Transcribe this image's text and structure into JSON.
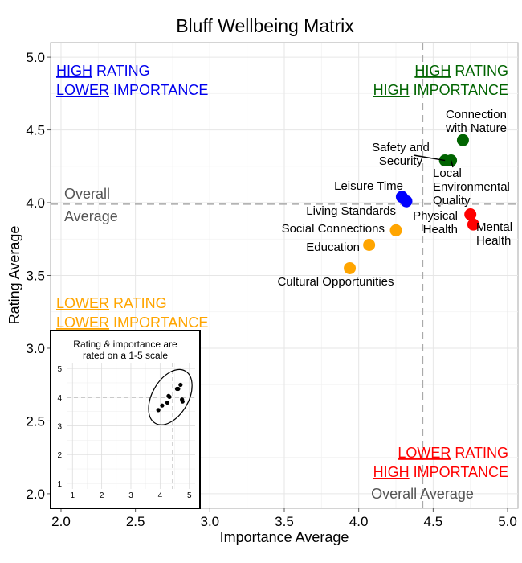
{
  "chart_data": {
    "type": "scatter",
    "title": "Bluff Wellbeing Matrix",
    "xlabel": "Importance Average",
    "ylabel": "Rating Average",
    "xlim": [
      1.93,
      5.07
    ],
    "ylim": [
      1.9,
      5.1
    ],
    "xticks": [
      "2.0",
      "2.5",
      "3.0",
      "3.5",
      "4.0",
      "4.5",
      "5.0"
    ],
    "yticks": [
      "2.0",
      "2.5",
      "3.0",
      "3.5",
      "4.0",
      "4.5",
      "5.0"
    ],
    "grid": true,
    "reference_lines": {
      "overall_importance": 4.43,
      "overall_rating": 3.99
    },
    "reference_labels": {
      "rating": [
        "Overall",
        "Average"
      ],
      "importance": "Overall Average"
    },
    "colors": {
      "high_high": "#006400",
      "high_low": "#0000ee",
      "low_low": "#ffa500",
      "low_high": "#ff0000",
      "points_green": "#006400",
      "points_blue": "#0000ff",
      "points_orange": "#ffa500",
      "points_red": "#ff0000"
    },
    "quadrants": [
      {
        "id": "high-rating-lower-importance",
        "lines": [
          [
            "HIGH",
            " RATING"
          ],
          [
            "LOWER",
            " IMPORTANCE"
          ]
        ],
        "color": "#0000ee",
        "position": "top-left"
      },
      {
        "id": "high-rating-high-importance",
        "lines": [
          [
            "HIGH",
            " RATING"
          ],
          [
            "HIGH",
            " IMPORTANCE"
          ]
        ],
        "color": "#006400",
        "position": "top-right"
      },
      {
        "id": "lower-rating-lower-importance",
        "lines": [
          [
            "LOWER",
            " RATING"
          ],
          [
            "LOWER",
            " IMPORTANCE"
          ]
        ],
        "color": "#ffa500",
        "position": "bottom-left"
      },
      {
        "id": "lower-rating-high-importance",
        "lines": [
          [
            "LOWER",
            " RATING"
          ],
          [
            "HIGH",
            " IMPORTANCE"
          ]
        ],
        "color": "#ff0000",
        "position": "bottom-right"
      }
    ],
    "points": [
      {
        "label": [
          "Connection",
          "with Nature"
        ],
        "x": 4.7,
        "y": 4.43,
        "color": "#006400"
      },
      {
        "label": [
          "Safety and",
          "Security"
        ],
        "x": 4.58,
        "y": 4.29,
        "color": "#006400"
      },
      {
        "label": [
          "Local",
          "Environmental",
          "Quality"
        ],
        "x": 4.62,
        "y": 4.29,
        "color": "#006400"
      },
      {
        "label": [
          "Leisure Time"
        ],
        "x": 4.29,
        "y": 4.04,
        "color": "#0000ff"
      },
      {
        "label": [
          "Living Standards"
        ],
        "x": 4.32,
        "y": 4.01,
        "color": "#0000ff"
      },
      {
        "label": [
          "Physical",
          "Health"
        ],
        "x": 4.75,
        "y": 3.92,
        "color": "#ff0000"
      },
      {
        "label": [
          "Mental",
          "Health"
        ],
        "x": 4.77,
        "y": 3.85,
        "color": "#ff0000"
      },
      {
        "label": [
          "Social Connections"
        ],
        "x": 4.25,
        "y": 3.81,
        "color": "#ffa500"
      },
      {
        "label": [
          "Education"
        ],
        "x": 4.07,
        "y": 3.71,
        "color": "#ffa500"
      },
      {
        "label": [
          "Cultural Opportunities"
        ],
        "x": 3.94,
        "y": 3.55,
        "color": "#ffa500"
      }
    ],
    "inset": {
      "title": [
        "Rating & importance are",
        "rated on a 1-5 scale"
      ],
      "xlim": [
        0.8,
        5.2
      ],
      "ylim": [
        0.8,
        5.2
      ],
      "xticks": [
        "1",
        "2",
        "3",
        "4",
        "5"
      ],
      "yticks": [
        "1",
        "2",
        "3",
        "4",
        "5"
      ],
      "reference_lines": {
        "x": 4.43,
        "y": 3.99
      },
      "points": [
        {
          "x": 4.7,
          "y": 4.43
        },
        {
          "x": 4.58,
          "y": 4.29
        },
        {
          "x": 4.62,
          "y": 4.29
        },
        {
          "x": 4.29,
          "y": 4.04
        },
        {
          "x": 4.32,
          "y": 4.01
        },
        {
          "x": 4.75,
          "y": 3.92
        },
        {
          "x": 4.77,
          "y": 3.85
        },
        {
          "x": 4.25,
          "y": 3.81
        },
        {
          "x": 4.07,
          "y": 3.71
        },
        {
          "x": 3.94,
          "y": 3.55
        }
      ],
      "ellipse": {
        "cx": 4.35,
        "cy": 4.0,
        "rx": 0.62,
        "ry": 1.05,
        "rotate": 30
      }
    }
  }
}
